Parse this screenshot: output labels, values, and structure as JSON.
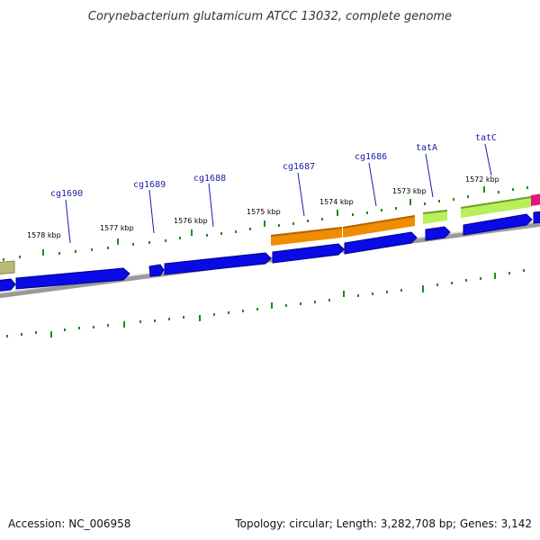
{
  "title": "Corynebacterium glutamicum ATCC 13032, complete genome",
  "footer": {
    "accession": "Accession: NC_006958",
    "summary": "Topology: circular; Length: 3,282,708 bp; Genes: 3,142"
  },
  "kbp_labels": [
    "1578 kbp",
    "1577 kbp",
    "1576 kbp",
    "1575 kbp",
    "1574 kbp",
    "1573 kbp",
    "1572 kbp"
  ],
  "gene_labels": [
    "cg1690",
    "cg1689",
    "cg1688",
    "cg1687",
    "cg1686",
    "tatA",
    "tatC"
  ],
  "colors": {
    "cds": "#0a0ae6",
    "cds_dark": "#00008c",
    "orange": "#f08c00",
    "lime": "#a8e63a",
    "olive": "#bcb878",
    "magenta": "#e6147a",
    "tick_green": "#1f8a1f",
    "backbone": "#808080",
    "label_line": "#1a1aa8"
  }
}
